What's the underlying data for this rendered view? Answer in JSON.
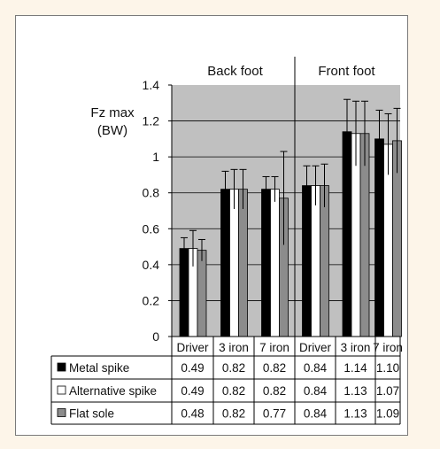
{
  "chart_data": {
    "type": "bar",
    "ylabel": "Fz max\n(BW)",
    "ylim": [
      0,
      1.4
    ],
    "yticks": [
      "0",
      "0.2",
      "0.4",
      "0.6",
      "0.8",
      "1",
      "1.2",
      "1.4"
    ],
    "groups": [
      "Back foot",
      "Front foot"
    ],
    "categories": [
      "Driver",
      "3 iron",
      "7 iron",
      "Driver",
      "3 iron",
      "7 iron"
    ],
    "series": [
      {
        "name": "Metal spike",
        "color": "#000000",
        "values": [
          "0.49",
          "0.82",
          "0.82",
          "0.84",
          "1.14",
          "1.10"
        ],
        "error_top": [
          0.55,
          0.92,
          0.89,
          0.95,
          1.32,
          1.26
        ]
      },
      {
        "name": "Alternative spike",
        "color": "#ffffff",
        "values": [
          "0.49",
          "0.82",
          "0.82",
          "0.84",
          "1.13",
          "1.07"
        ],
        "error_top": [
          0.59,
          0.93,
          0.89,
          0.95,
          1.31,
          1.24
        ]
      },
      {
        "name": "Flat sole",
        "color": "#8c8c8c",
        "values": [
          "0.48",
          "0.82",
          "0.77",
          "0.84",
          "1.13",
          "1.09"
        ],
        "error_top": [
          0.54,
          0.93,
          1.03,
          0.96,
          1.31,
          1.27
        ]
      }
    ],
    "plot_background": "#c0c0c0",
    "grid": true,
    "legend_placement": "data-table"
  }
}
